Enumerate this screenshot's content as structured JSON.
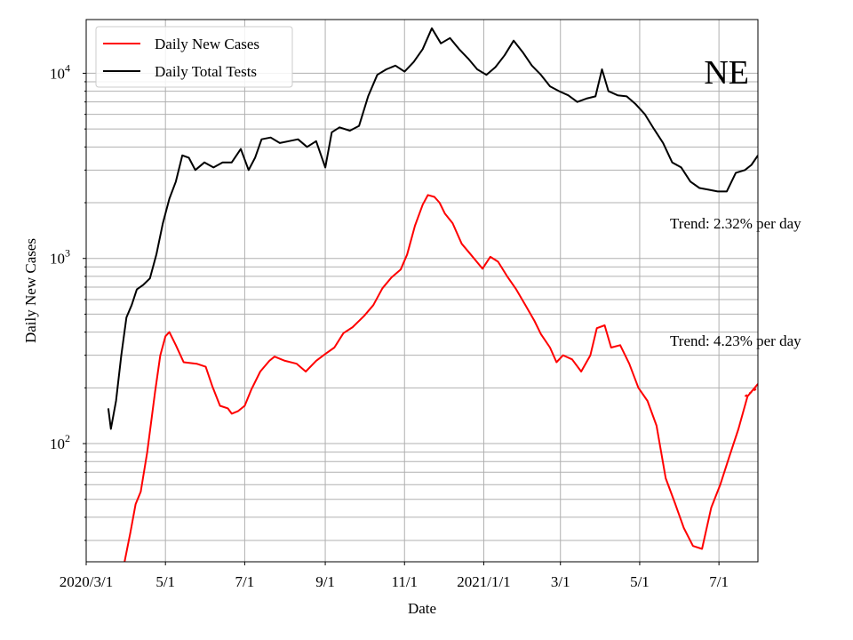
{
  "chart_data": {
    "type": "line",
    "title": "",
    "xlabel": "Date",
    "ylabel": "Daily New Cases",
    "yscale": "log",
    "ylim": [
      23,
      19500
    ],
    "xlim": [
      "2020-03-01",
      "2021-07-31"
    ],
    "grid": true,
    "legend_position": "top-left",
    "state_label": "NE",
    "x_ticks": [
      {
        "date": "2020-03-01",
        "label": "2020/3/1"
      },
      {
        "date": "2020-05-01",
        "label": "5/1"
      },
      {
        "date": "2020-07-01",
        "label": "7/1"
      },
      {
        "date": "2020-09-01",
        "label": "9/1"
      },
      {
        "date": "2020-11-01",
        "label": "11/1"
      },
      {
        "date": "2021-01-01",
        "label": "2021/1/1"
      },
      {
        "date": "2021-03-01",
        "label": "3/1"
      },
      {
        "date": "2021-05-01",
        "label": "5/1"
      },
      {
        "date": "2021-07-01",
        "label": "7/1"
      }
    ],
    "y_ticks": [
      {
        "value": 100,
        "base": "10",
        "exp": "2"
      },
      {
        "value": 1000,
        "base": "10",
        "exp": "3"
      },
      {
        "value": 10000,
        "base": "10",
        "exp": "4"
      }
    ],
    "annotations": [
      {
        "text": "Trend: 2.32% per day",
        "anchor_value": 1550
      },
      {
        "text": "Trend: 4.23% per day",
        "anchor_value": 360
      }
    ],
    "series": [
      {
        "name": "Daily New Cases",
        "color": "#ff0000",
        "points": [
          [
            "2020-03-30",
            22
          ],
          [
            "2020-04-04",
            33
          ],
          [
            "2020-04-08",
            47
          ],
          [
            "2020-04-12",
            55
          ],
          [
            "2020-04-17",
            90
          ],
          [
            "2020-04-23",
            190
          ],
          [
            "2020-04-27",
            300
          ],
          [
            "2020-05-01",
            380
          ],
          [
            "2020-05-04",
            400
          ],
          [
            "2020-05-09",
            340
          ],
          [
            "2020-05-15",
            275
          ],
          [
            "2020-05-25",
            270
          ],
          [
            "2020-06-01",
            260
          ],
          [
            "2020-06-06",
            205
          ],
          [
            "2020-06-12",
            160
          ],
          [
            "2020-06-18",
            155
          ],
          [
            "2020-06-21",
            145
          ],
          [
            "2020-06-26",
            150
          ],
          [
            "2020-07-01",
            160
          ],
          [
            "2020-07-06",
            195
          ],
          [
            "2020-07-13",
            245
          ],
          [
            "2020-07-20",
            280
          ],
          [
            "2020-07-24",
            295
          ],
          [
            "2020-08-01",
            280
          ],
          [
            "2020-08-10",
            270
          ],
          [
            "2020-08-17",
            245
          ],
          [
            "2020-08-25",
            280
          ],
          [
            "2020-09-01",
            305
          ],
          [
            "2020-09-08",
            330
          ],
          [
            "2020-09-15",
            395
          ],
          [
            "2020-09-22",
            425
          ],
          [
            "2020-10-01",
            490
          ],
          [
            "2020-10-08",
            560
          ],
          [
            "2020-10-15",
            690
          ],
          [
            "2020-10-22",
            790
          ],
          [
            "2020-10-29",
            870
          ],
          [
            "2020-11-03",
            1050
          ],
          [
            "2020-11-09",
            1500
          ],
          [
            "2020-11-15",
            1950
          ],
          [
            "2020-11-19",
            2200
          ],
          [
            "2020-11-24",
            2150
          ],
          [
            "2020-11-28",
            2000
          ],
          [
            "2020-12-02",
            1750
          ],
          [
            "2020-12-08",
            1550
          ],
          [
            "2020-12-15",
            1200
          ],
          [
            "2020-12-22",
            1050
          ],
          [
            "2020-12-31",
            880
          ],
          [
            "2021-01-06",
            1020
          ],
          [
            "2021-01-12",
            960
          ],
          [
            "2021-01-19",
            800
          ],
          [
            "2021-01-26",
            680
          ],
          [
            "2021-02-02",
            560
          ],
          [
            "2021-02-09",
            460
          ],
          [
            "2021-02-14",
            390
          ],
          [
            "2021-02-21",
            330
          ],
          [
            "2021-02-26",
            275
          ],
          [
            "2021-03-03",
            300
          ],
          [
            "2021-03-10",
            285
          ],
          [
            "2021-03-17",
            245
          ],
          [
            "2021-03-24",
            300
          ],
          [
            "2021-03-29",
            420
          ],
          [
            "2021-04-04",
            435
          ],
          [
            "2021-04-09",
            330
          ],
          [
            "2021-04-16",
            340
          ],
          [
            "2021-04-23",
            270
          ],
          [
            "2021-04-30",
            200
          ],
          [
            "2021-05-07",
            170
          ],
          [
            "2021-05-14",
            125
          ],
          [
            "2021-05-21",
            65
          ],
          [
            "2021-05-28",
            48
          ],
          [
            "2021-06-04",
            35
          ],
          [
            "2021-06-11",
            28
          ],
          [
            "2021-06-18",
            27
          ],
          [
            "2021-06-25",
            45
          ],
          [
            "2021-07-02",
            60
          ],
          [
            "2021-07-09",
            85
          ],
          [
            "2021-07-16",
            120
          ],
          [
            "2021-07-23",
            180
          ],
          [
            "2021-07-31",
            210
          ]
        ]
      },
      {
        "name": "Daily Total Tests",
        "color": "#000000",
        "points": [
          [
            "2020-03-18",
            155
          ],
          [
            "2020-03-20",
            120
          ],
          [
            "2020-03-24",
            170
          ],
          [
            "2020-03-28",
            300
          ],
          [
            "2020-04-01",
            480
          ],
          [
            "2020-04-05",
            560
          ],
          [
            "2020-04-09",
            680
          ],
          [
            "2020-04-14",
            720
          ],
          [
            "2020-04-19",
            780
          ],
          [
            "2020-04-24",
            1050
          ],
          [
            "2020-04-29",
            1550
          ],
          [
            "2020-05-04",
            2100
          ],
          [
            "2020-05-09",
            2600
          ],
          [
            "2020-05-14",
            3600
          ],
          [
            "2020-05-19",
            3500
          ],
          [
            "2020-05-24",
            3000
          ],
          [
            "2020-05-31",
            3300
          ],
          [
            "2020-06-07",
            3100
          ],
          [
            "2020-06-14",
            3300
          ],
          [
            "2020-06-21",
            3300
          ],
          [
            "2020-06-28",
            3900
          ],
          [
            "2020-07-04",
            3000
          ],
          [
            "2020-07-09",
            3500
          ],
          [
            "2020-07-14",
            4400
          ],
          [
            "2020-07-21",
            4500
          ],
          [
            "2020-07-28",
            4200
          ],
          [
            "2020-08-04",
            4300
          ],
          [
            "2020-08-11",
            4400
          ],
          [
            "2020-08-18",
            4000
          ],
          [
            "2020-08-25",
            4300
          ],
          [
            "2020-09-01",
            3100
          ],
          [
            "2020-09-06",
            4800
          ],
          [
            "2020-09-12",
            5100
          ],
          [
            "2020-09-20",
            4900
          ],
          [
            "2020-09-27",
            5200
          ],
          [
            "2020-10-04",
            7500
          ],
          [
            "2020-10-11",
            9800
          ],
          [
            "2020-10-18",
            10500
          ],
          [
            "2020-10-25",
            11000
          ],
          [
            "2020-11-01",
            10200
          ],
          [
            "2020-11-08",
            11500
          ],
          [
            "2020-11-15",
            13500
          ],
          [
            "2020-11-22",
            17500
          ],
          [
            "2020-11-29",
            14500
          ],
          [
            "2020-12-06",
            15500
          ],
          [
            "2020-12-13",
            13500
          ],
          [
            "2020-12-20",
            12000
          ],
          [
            "2020-12-27",
            10500
          ],
          [
            "2021-01-03",
            9800
          ],
          [
            "2021-01-10",
            10800
          ],
          [
            "2021-01-17",
            12500
          ],
          [
            "2021-01-24",
            15000
          ],
          [
            "2021-01-31",
            13000
          ],
          [
            "2021-02-07",
            11000
          ],
          [
            "2021-02-14",
            9800
          ],
          [
            "2021-02-21",
            8500
          ],
          [
            "2021-02-28",
            8000
          ],
          [
            "2021-03-07",
            7600
          ],
          [
            "2021-03-14",
            7000
          ],
          [
            "2021-03-21",
            7300
          ],
          [
            "2021-03-28",
            7500
          ],
          [
            "2021-04-02",
            10500
          ],
          [
            "2021-04-07",
            8000
          ],
          [
            "2021-04-14",
            7600
          ],
          [
            "2021-04-21",
            7500
          ],
          [
            "2021-04-28",
            6800
          ],
          [
            "2021-05-05",
            6000
          ],
          [
            "2021-05-12",
            5000
          ],
          [
            "2021-05-19",
            4200
          ],
          [
            "2021-05-26",
            3300
          ],
          [
            "2021-06-02",
            3100
          ],
          [
            "2021-06-09",
            2600
          ],
          [
            "2021-06-16",
            2400
          ],
          [
            "2021-06-23",
            2350
          ],
          [
            "2021-06-30",
            2300
          ],
          [
            "2021-07-07",
            2300
          ],
          [
            "2021-07-14",
            2900
          ],
          [
            "2021-07-21",
            3000
          ],
          [
            "2021-07-26",
            3200
          ],
          [
            "2021-07-31",
            3600
          ]
        ]
      },
      {
        "name": "",
        "color": "#ff0000",
        "dashed": true,
        "points": [
          [
            "2021-07-21",
            180
          ],
          [
            "2021-07-31",
            200
          ]
        ]
      }
    ]
  }
}
